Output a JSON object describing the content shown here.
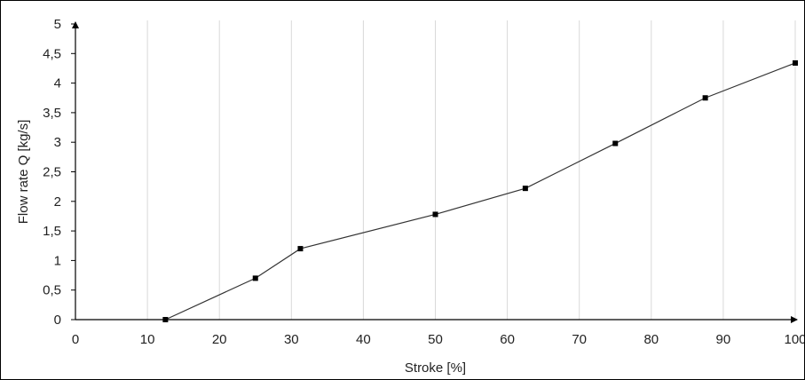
{
  "chart_data": {
    "type": "line",
    "xlabel": "Stroke [%]",
    "ylabel": "Flow rate Q [kg/s]",
    "xlim": [
      0,
      100
    ],
    "ylim": [
      0,
      5
    ],
    "x_ticks": [
      "0",
      "10",
      "20",
      "30",
      "40",
      "50",
      "60",
      "70",
      "80",
      "90",
      "100"
    ],
    "y_ticks": [
      "0",
      "0,5",
      "1",
      "1,5",
      "2",
      "2,5",
      "3",
      "3,5",
      "4",
      "4,5",
      "5"
    ],
    "grid": "vertical",
    "legend": "none",
    "series": [
      {
        "x": [
          12.5,
          25,
          31.25,
          50,
          62.5,
          75,
          87.5,
          100
        ],
        "y": [
          0,
          0.7,
          1.2,
          1.78,
          2.22,
          2.98,
          3.75,
          4.34
        ]
      }
    ],
    "colors": {
      "line": "#333333",
      "marker": "#000000",
      "grid": "#d9d9d9",
      "axis": "#000000"
    }
  }
}
